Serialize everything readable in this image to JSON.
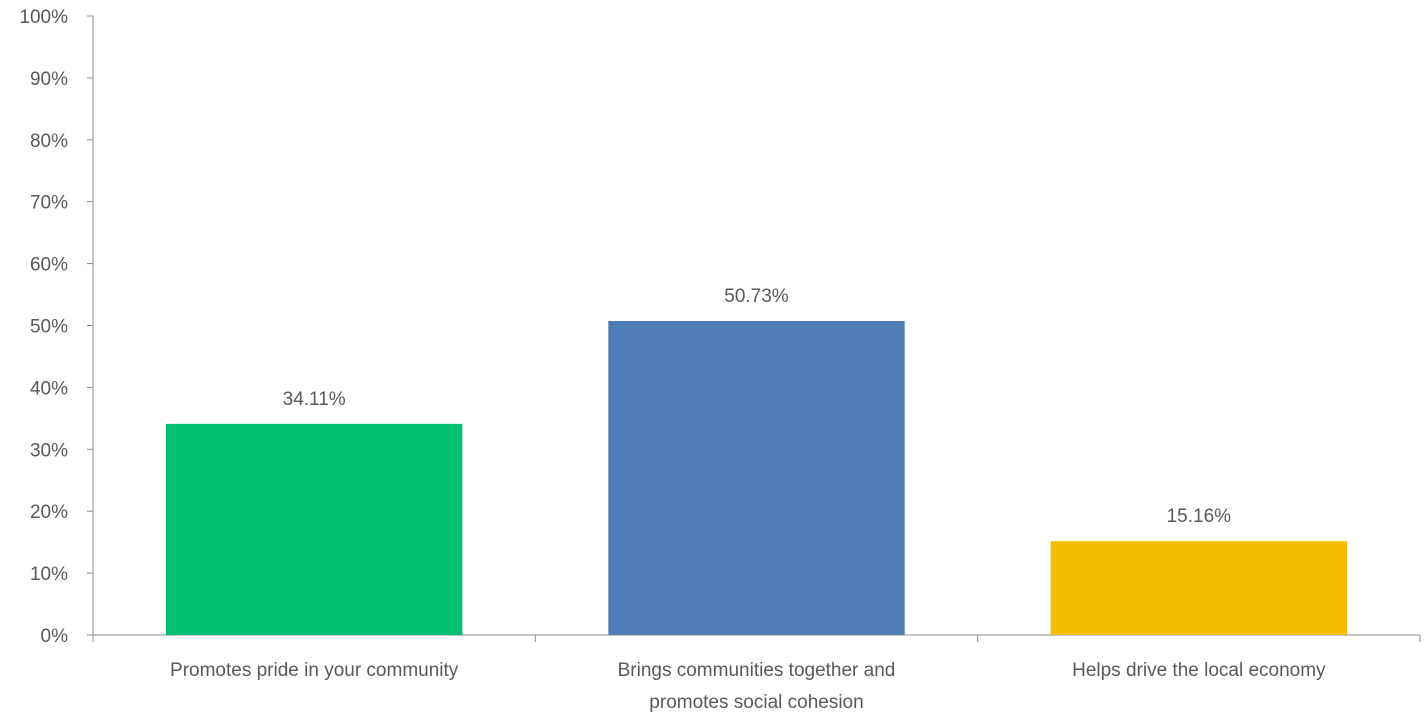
{
  "chart_data": {
    "type": "bar",
    "title": "",
    "xlabel": "",
    "ylabel": "",
    "categories": [
      [
        "Promotes pride in your community"
      ],
      [
        "Brings communities together and",
        "promotes social cohesion"
      ],
      [
        "Helps drive the local economy"
      ]
    ],
    "values": [
      34.11,
      50.73,
      15.16
    ],
    "data_labels": [
      "34.11%",
      "50.73%",
      "15.16%"
    ],
    "colors": [
      "#00BF6F",
      "#507CB6",
      "#F6BE00"
    ],
    "ylim": [
      0,
      100
    ],
    "yticks": [
      0,
      10,
      20,
      30,
      40,
      50,
      60,
      70,
      80,
      90,
      100
    ],
    "ytick_labels": [
      "0%",
      "10%",
      "20%",
      "30%",
      "40%",
      "50%",
      "60%",
      "70%",
      "80%",
      "90%",
      "100%"
    ],
    "grid": false,
    "legend": "none"
  }
}
